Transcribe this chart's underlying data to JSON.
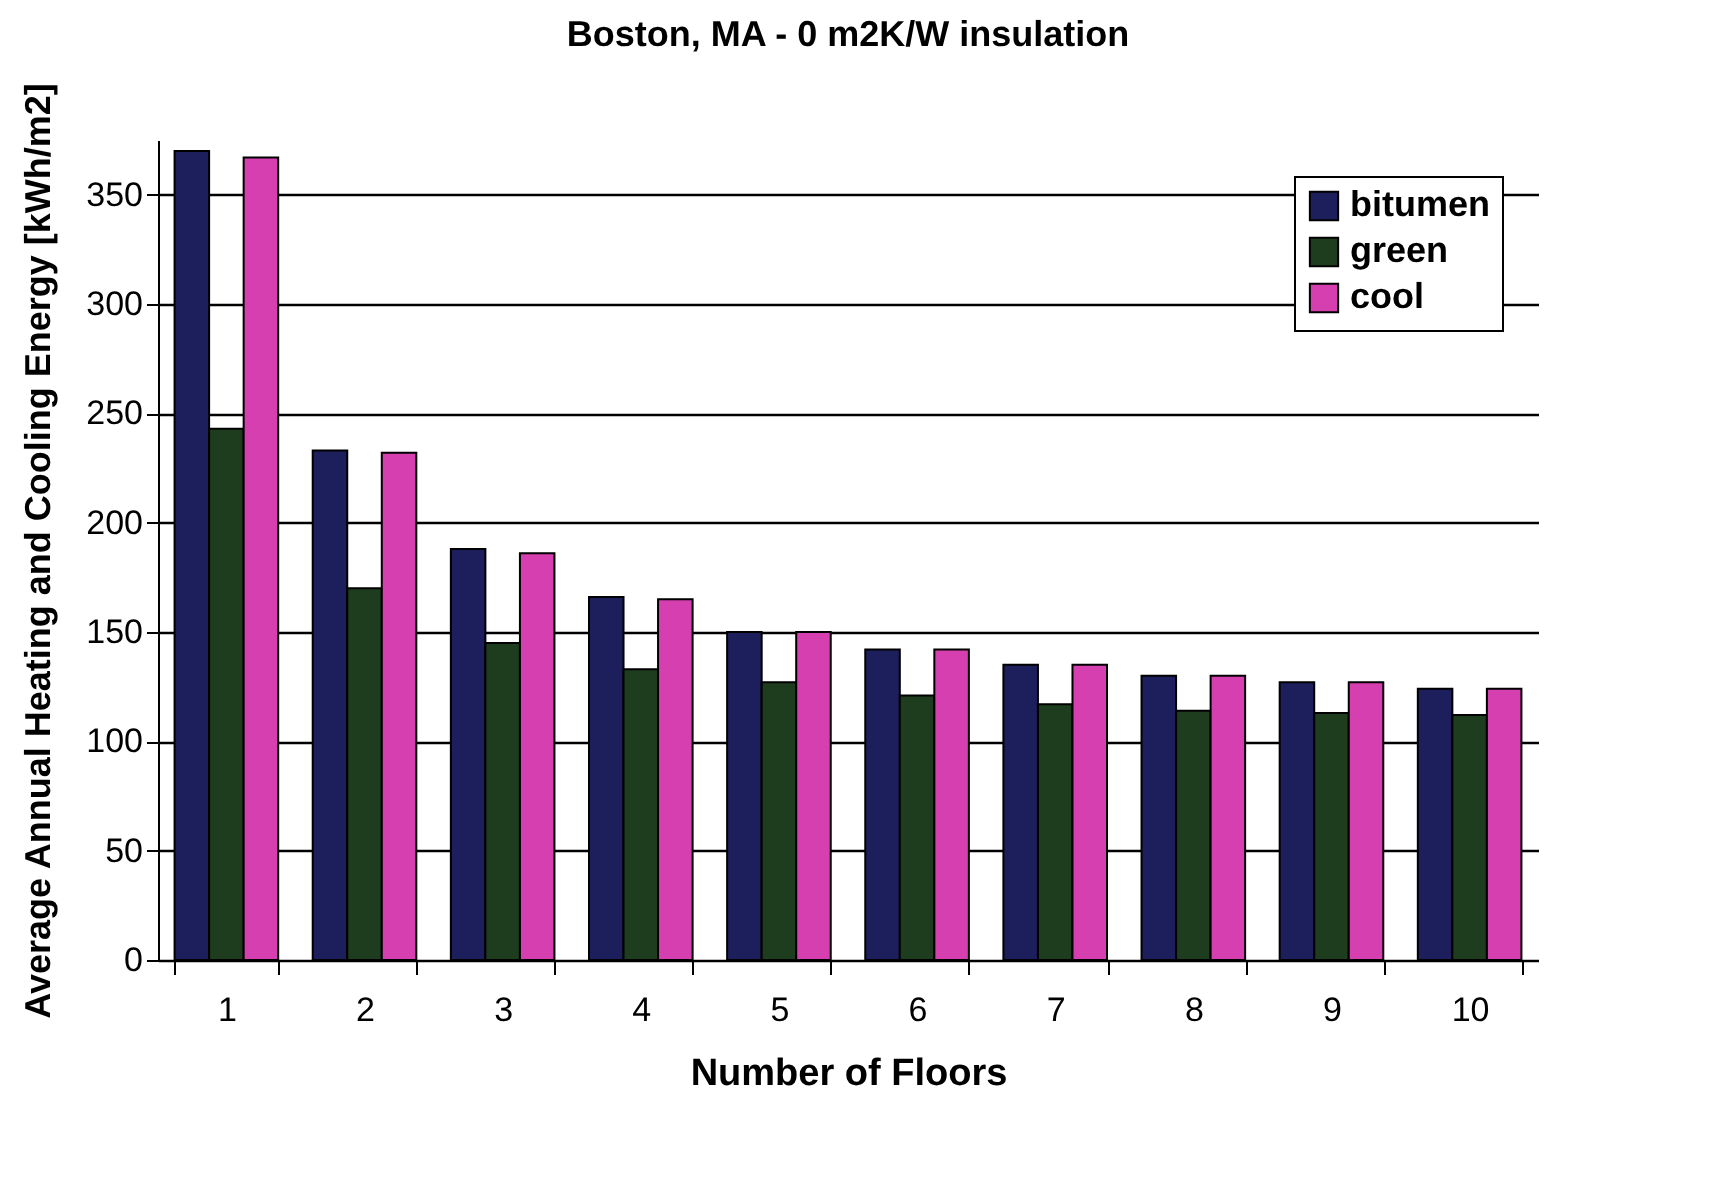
{
  "chart_data": {
    "type": "bar",
    "title": "Boston, MA - 0 m2K/W insulation",
    "xlabel": "Number of Floors",
    "ylabel": "Average Annual Heating and Cooling Energy [kWh/m2]",
    "categories": [
      "1",
      "2",
      "3",
      "4",
      "5",
      "6",
      "7",
      "8",
      "9",
      "10"
    ],
    "series": [
      {
        "name": "bitumen",
        "color": "#1c1f5c",
        "values": [
          370,
          233,
          188,
          166,
          150,
          142,
          135,
          130,
          127,
          124
        ]
      },
      {
        "name": "green",
        "color": "#1e3d1e",
        "values": [
          243,
          170,
          145,
          133,
          127,
          121,
          117,
          114,
          113,
          112
        ]
      },
      {
        "name": "cool",
        "color": "#d63fb0",
        "values": [
          367,
          232,
          186,
          165,
          150,
          142,
          135,
          130,
          127,
          124
        ]
      }
    ],
    "ylim": [
      0,
      375
    ],
    "yticks": [
      0,
      50,
      100,
      150,
      200,
      250,
      300,
      350
    ],
    "grid": "y",
    "legend": "top right"
  }
}
